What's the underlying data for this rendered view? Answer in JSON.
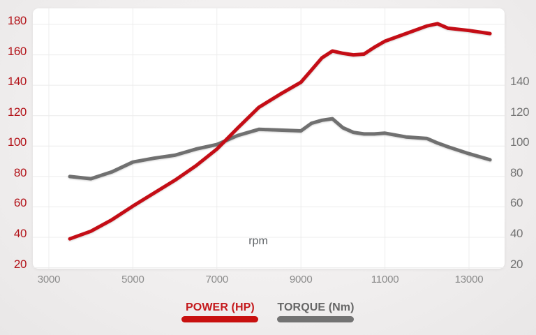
{
  "chart_data": {
    "type": "line",
    "x": [
      3500,
      4000,
      4500,
      5000,
      5500,
      6000,
      6500,
      7000,
      7500,
      8000,
      8500,
      9000,
      9250,
      9500,
      9750,
      10000,
      10250,
      10500,
      10750,
      11000,
      11500,
      12000,
      12250,
      12500,
      13000,
      13500
    ],
    "series": [
      {
        "name": "POWER (HP)",
        "color": "#c41114",
        "values": [
          39,
          44,
          51.5,
          60.5,
          69,
          77.5,
          87,
          98,
          112,
          125.5,
          134,
          142,
          150,
          158,
          162.5,
          161,
          160,
          160.5,
          165,
          169,
          174,
          179,
          180.5,
          177.5,
          176,
          174
        ]
      },
      {
        "name": "TORQUE (Nm)",
        "color": "#6f6f6f",
        "values": [
          80,
          78.5,
          83,
          89.5,
          92,
          94,
          98,
          101,
          107,
          111,
          110.5,
          110,
          115,
          117,
          118,
          112,
          109,
          108,
          108,
          108.5,
          106,
          105,
          102,
          99.5,
          95,
          91
        ]
      }
    ],
    "title": "",
    "xlabel": "rpm",
    "ylabel_left": "POWER (HP)",
    "ylabel_right": "TORQUE (Nm)",
    "x_ticks": [
      3000,
      5000,
      7000,
      9000,
      11000,
      13000
    ],
    "y_ticks_left": [
      20,
      40,
      60,
      80,
      100,
      120,
      140,
      160,
      180
    ],
    "y_ticks_right": [
      20,
      40,
      60,
      80,
      100,
      120,
      140
    ],
    "x_range": [
      2620,
      13850
    ],
    "y_range": [
      20,
      190
    ],
    "grid": true,
    "legend_position": "bottom"
  },
  "axes": {
    "left_tick_color": "#b3141a",
    "right_tick_color": "#757575",
    "bottom_tick_color": "#8b8b8b",
    "gridline_color": "#ececec"
  },
  "labels": {
    "x_axis_title": "rpm"
  },
  "legend": {
    "items": [
      {
        "label": "POWER (HP)",
        "color": "#c8100f",
        "text_color": "#c4191c"
      },
      {
        "label": "TORQUE (Nm)",
        "color": "#737373",
        "text_color": "#666666"
      }
    ]
  }
}
